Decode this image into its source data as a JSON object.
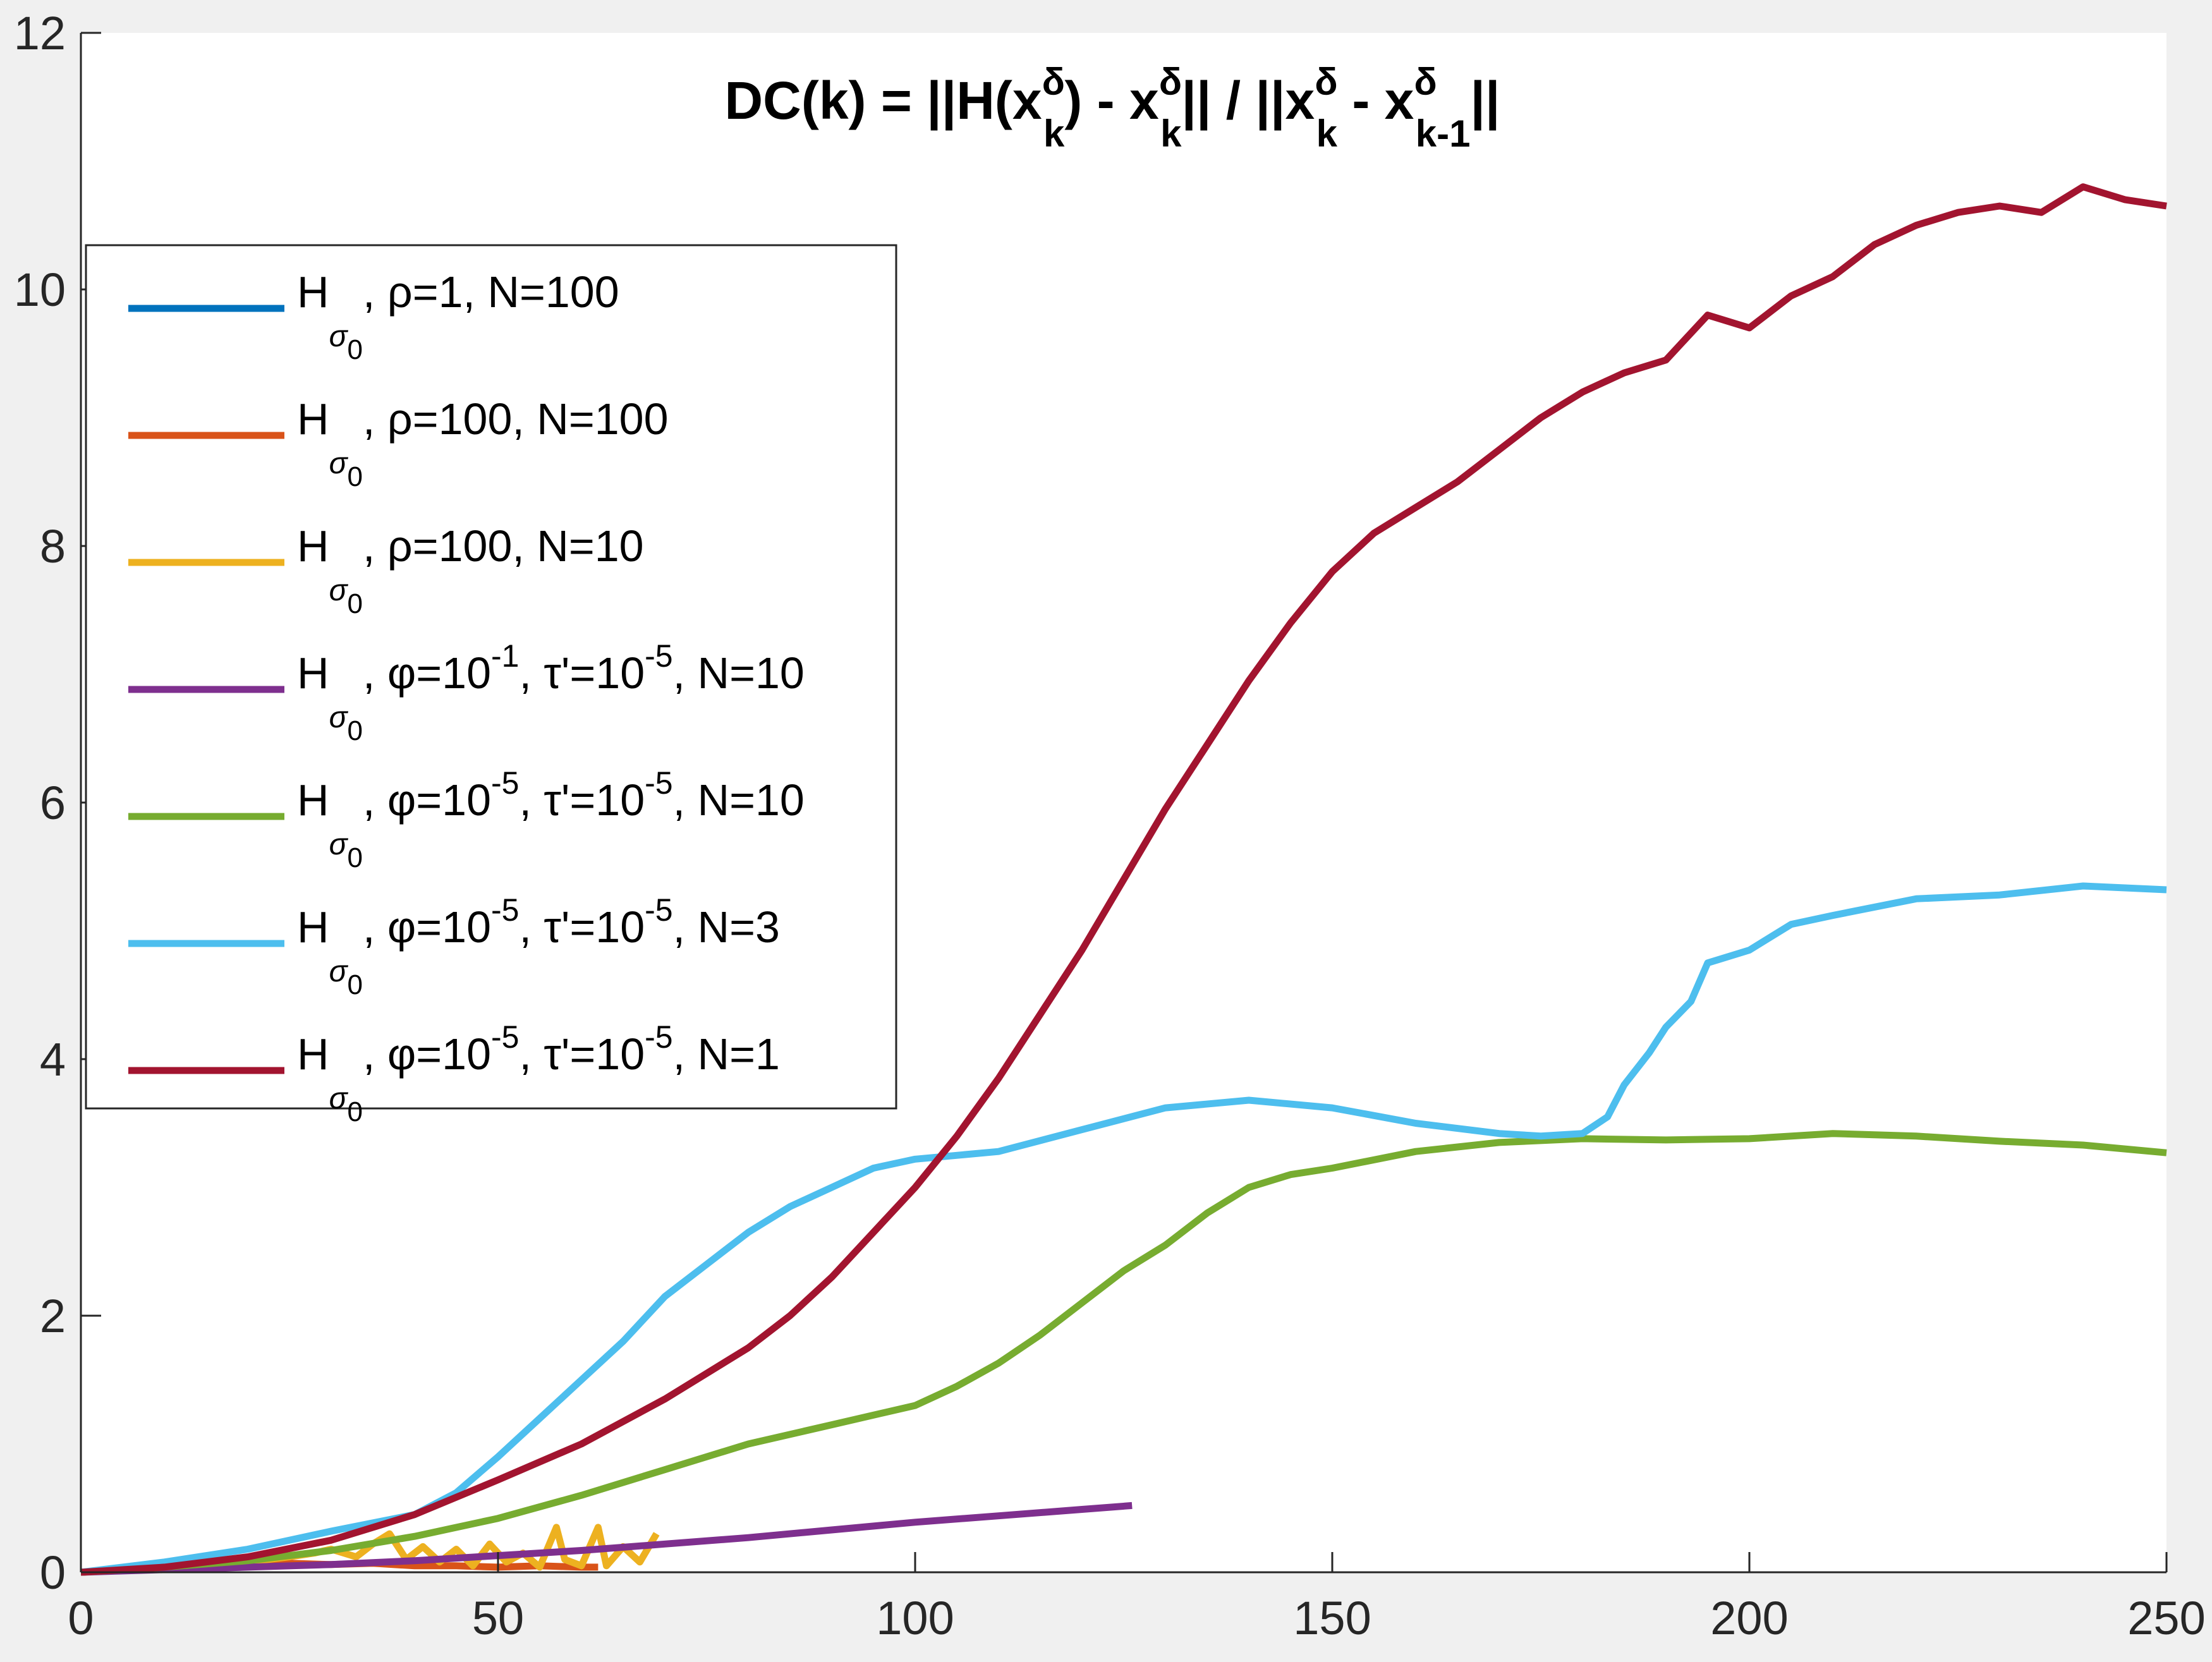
{
  "chart_data": {
    "type": "line",
    "title": "DC(k) = ||H(x_k^δ) - x_k^δ|| / ||x_k^δ - x_{k-1}^δ||",
    "title_parts": {
      "prefix": "DC(k) = ||H(x",
      "delta": "δ",
      "k": "k",
      "mid1": ") - x",
      "mid2": "|| / ||x",
      "mid3": " - x",
      "km1": "k-1",
      "suffix": "||"
    },
    "xlabel": "",
    "ylabel": "",
    "xlim": [
      0,
      250
    ],
    "ylim": [
      0,
      12
    ],
    "xticks": [
      "0",
      "50",
      "100",
      "150",
      "200",
      "250"
    ],
    "yticks": [
      "0",
      "2",
      "4",
      "6",
      "8",
      "10",
      "12"
    ],
    "grid": false,
    "legend_position": "upper-left",
    "series": [
      {
        "name": "H_σ0, ρ=1, N=100",
        "color": "#0072BD",
        "legend": {
          "main": "H",
          "sub": "σ",
          "subsub": "0",
          "rest": ", ρ=1, N=100"
        },
        "x": [],
        "y": []
      },
      {
        "name": "H_σ0, ρ=100, N=100",
        "color": "#D95319",
        "legend": {
          "main": "H",
          "sub": "σ",
          "subsub": "0",
          "rest": ", ρ=100, N=100"
        },
        "x": [
          0,
          5,
          10,
          15,
          20,
          25,
          30,
          35,
          40,
          45,
          50,
          55,
          60,
          62
        ],
        "y": [
          0,
          0.02,
          0.03,
          0.05,
          0.06,
          0.07,
          0.06,
          0.07,
          0.05,
          0.05,
          0.04,
          0.05,
          0.04,
          0.04
        ]
      },
      {
        "name": "H_σ0, ρ=100, N=10",
        "color": "#EDB120",
        "legend": {
          "main": "H",
          "sub": "σ",
          "subsub": "0",
          "rest": ", ρ=100, N=10"
        },
        "x": [
          0,
          10,
          20,
          25,
          28,
          30,
          33,
          35,
          37,
          39,
          41,
          43,
          45,
          47,
          49,
          51,
          53,
          55,
          57,
          58,
          60,
          62,
          63,
          65,
          67,
          69
        ],
        "y": [
          0,
          0.03,
          0.08,
          0.12,
          0.15,
          0.18,
          0.12,
          0.22,
          0.3,
          0.1,
          0.2,
          0.08,
          0.18,
          0.05,
          0.22,
          0.08,
          0.15,
          0.04,
          0.35,
          0.1,
          0.05,
          0.35,
          0.05,
          0.2,
          0.08,
          0.3
        ]
      },
      {
        "name": "H_σ0, φ=10^-1, τ'=10^-5, N=10",
        "color": "#7E2F8E",
        "legend": {
          "main": "H",
          "sub": "σ",
          "subsub": "0",
          "p1": ", φ=10",
          "e1": "-1",
          "p2": ", τ'=10",
          "e2": "-5",
          "p3": ", N=10"
        },
        "x": [
          0,
          10,
          20,
          30,
          40,
          50,
          60,
          70,
          80,
          90,
          100,
          110,
          120,
          126
        ],
        "y": [
          0,
          0.02,
          0.04,
          0.06,
          0.09,
          0.13,
          0.17,
          0.22,
          0.27,
          0.33,
          0.39,
          0.44,
          0.49,
          0.52
        ]
      },
      {
        "name": "H_σ0, φ=10^-5, τ'=10^-5, N=10",
        "color": "#77AC30",
        "legend": {
          "main": "H",
          "sub": "σ",
          "subsub": "0",
          "p1": ", φ=10",
          "e1": "-5",
          "p2": ", τ'=10",
          "e2": "-5",
          "p3": ", N=10"
        },
        "x": [
          0,
          10,
          20,
          30,
          40,
          50,
          60,
          70,
          80,
          90,
          100,
          105,
          110,
          115,
          120,
          125,
          130,
          135,
          140,
          145,
          150,
          160,
          170,
          180,
          190,
          200,
          210,
          220,
          230,
          240,
          250
        ],
        "y": [
          0,
          0.04,
          0.09,
          0.17,
          0.28,
          0.42,
          0.6,
          0.8,
          1.0,
          1.15,
          1.3,
          1.45,
          1.63,
          1.85,
          2.1,
          2.35,
          2.55,
          2.8,
          3.0,
          3.1,
          3.15,
          3.28,
          3.35,
          3.38,
          3.37,
          3.38,
          3.42,
          3.4,
          3.36,
          3.33,
          3.27
        ]
      },
      {
        "name": "H_σ0, φ=10^-5, τ'=10^-5, N=3",
        "color": "#4DBEEE",
        "legend": {
          "main": "H",
          "sub": "σ",
          "subsub": "0",
          "p1": ", φ=10",
          "e1": "-5",
          "p2": ", τ'=10",
          "e2": "-5",
          "p3": ", N=3"
        },
        "x": [
          0,
          10,
          20,
          30,
          40,
          45,
          50,
          55,
          60,
          65,
          70,
          75,
          80,
          85,
          90,
          95,
          100,
          110,
          120,
          130,
          140,
          150,
          160,
          170,
          175,
          180,
          183,
          185,
          188,
          190,
          193,
          195,
          200,
          205,
          210,
          220,
          230,
          240,
          250
        ],
        "y": [
          0,
          0.08,
          0.18,
          0.32,
          0.45,
          0.62,
          0.9,
          1.2,
          1.5,
          1.8,
          2.15,
          2.4,
          2.65,
          2.85,
          3.0,
          3.15,
          3.22,
          3.28,
          3.45,
          3.62,
          3.68,
          3.62,
          3.5,
          3.42,
          3.4,
          3.42,
          3.55,
          3.8,
          4.05,
          4.25,
          4.45,
          4.75,
          4.85,
          5.05,
          5.12,
          5.25,
          5.28,
          5.35,
          5.32
        ]
      },
      {
        "name": "H_σ0, φ=10^-5, τ'=10^-5, N=1",
        "color": "#A2142F",
        "legend": {
          "main": "H",
          "sub": "σ",
          "subsub": "0",
          "p1": ", φ=10",
          "e1": "-5",
          "p2": ", τ'=10",
          "e2": "-5",
          "p3": ", N=1"
        },
        "x": [
          0,
          10,
          20,
          30,
          40,
          50,
          60,
          70,
          80,
          85,
          90,
          95,
          100,
          105,
          110,
          115,
          120,
          125,
          130,
          135,
          140,
          145,
          150,
          155,
          160,
          165,
          170,
          175,
          180,
          185,
          190,
          195,
          200,
          205,
          210,
          215,
          220,
          225,
          230,
          235,
          240,
          245,
          250
        ],
        "y": [
          0,
          0.04,
          0.12,
          0.25,
          0.45,
          0.72,
          1.0,
          1.35,
          1.75,
          2.0,
          2.3,
          2.65,
          3.0,
          3.4,
          3.85,
          4.35,
          4.85,
          5.4,
          5.95,
          6.45,
          6.95,
          7.4,
          7.8,
          8.1,
          8.3,
          8.5,
          8.75,
          9.0,
          9.2,
          9.35,
          9.45,
          9.8,
          9.7,
          9.95,
          10.1,
          10.35,
          10.5,
          10.6,
          10.65,
          10.6,
          10.8,
          10.7,
          10.65
        ]
      }
    ]
  }
}
